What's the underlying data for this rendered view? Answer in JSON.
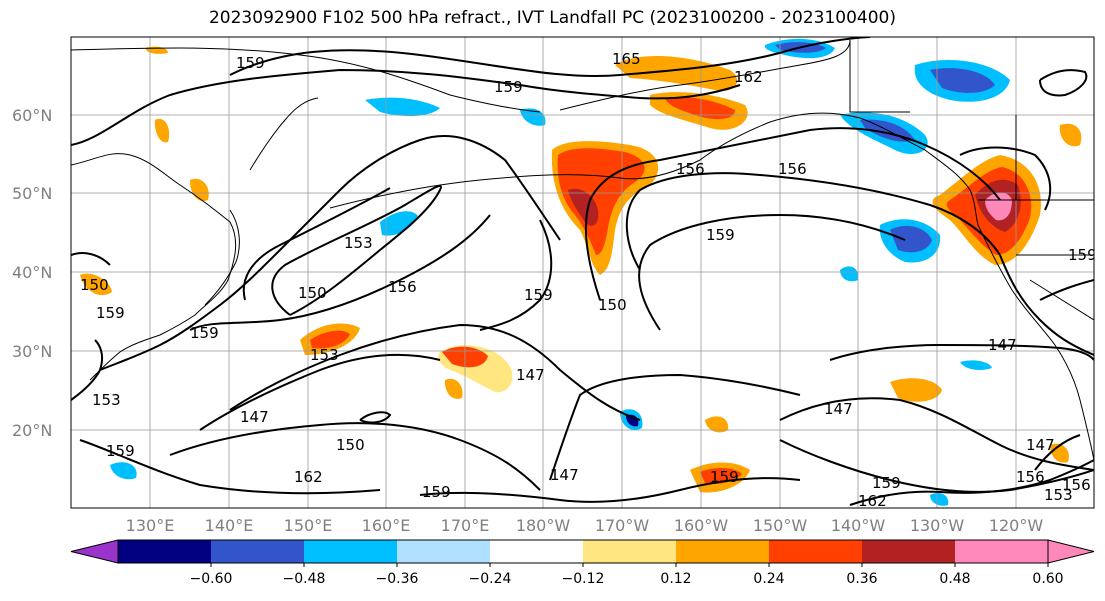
{
  "title": "2023092900 F102 500 hPa refract., IVT Landfall PC (2023100200 - 2023100400)",
  "lat_labels": [
    "60°N",
    "50°N",
    "40°N",
    "30°N",
    "20°N"
  ],
  "lon_labels": [
    "130°E",
    "140°E",
    "150°E",
    "160°E",
    "170°E",
    "180°W",
    "170°W",
    "160°W",
    "150°W",
    "140°W",
    "130°W",
    "120°W"
  ],
  "contour_labels": [
    "165",
    "159",
    "162",
    "159",
    "156",
    "156",
    "159",
    "153",
    "150",
    "156",
    "159",
    "150",
    "159",
    "150",
    "153",
    "147",
    "153",
    "147",
    "147",
    "150",
    "159",
    "162",
    "159",
    "147",
    "159",
    "162",
    "159",
    "147",
    "156",
    "153",
    "156",
    "147",
    "159",
    "159"
  ],
  "colorbar": {
    "ticks": [
      "−0.60",
      "−0.48",
      "−0.36",
      "−0.24",
      "−0.12",
      "0.12",
      "0.24",
      "0.36",
      "0.48",
      "0.60"
    ],
    "colors": [
      "#9933cc",
      "#000080",
      "#3355cc",
      "#00bfff",
      "#b0e0ff",
      "#ffffff",
      "#ffe680",
      "#ffa500",
      "#ff4000",
      "#b22222",
      "#ff88bb",
      "#ff88bb"
    ]
  }
}
